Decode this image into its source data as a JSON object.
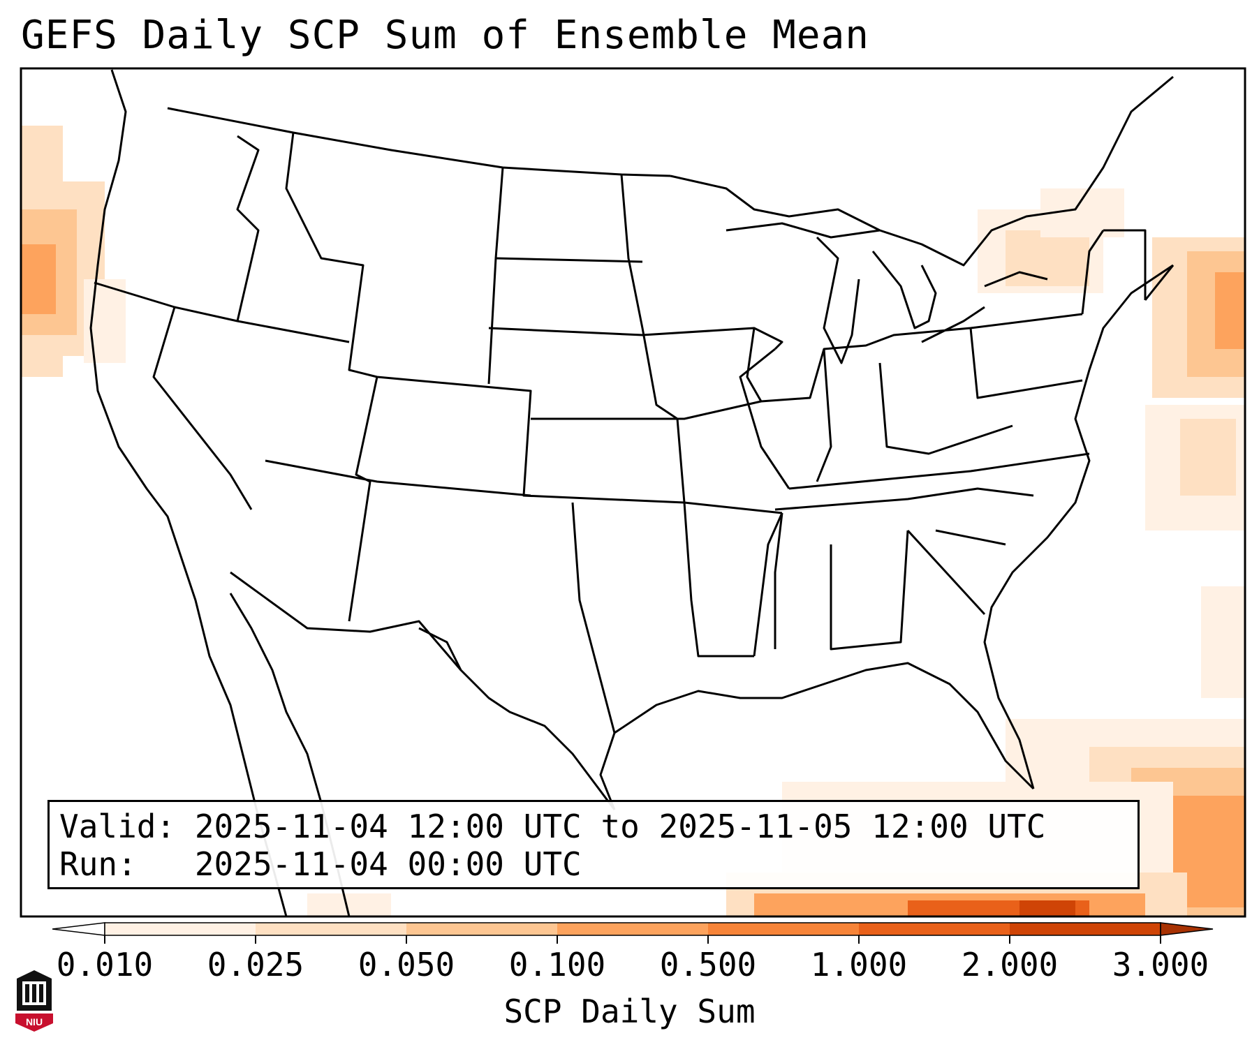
{
  "title": "GEFS Daily SCP Sum of Ensemble Mean",
  "valid_line": "Valid: 2025-11-04 12:00 UTC to 2025-11-05 12:00 UTC",
  "run_line": "Run:   2025-11-04 00:00 UTC",
  "colorbar": {
    "label": "SCP Daily Sum",
    "ticks": [
      "0.010",
      "0.025",
      "0.050",
      "0.100",
      "0.500",
      "1.000",
      "2.000",
      "3.000"
    ],
    "colors": [
      "#fff1e4",
      "#fee0c2",
      "#fdc692",
      "#fda35d",
      "#f78438",
      "#e9611a",
      "#cf4406"
    ],
    "under_color": "#ffffff",
    "over_color": "#a83203"
  },
  "logo": {
    "text": "NIU",
    "color": "#c8102e"
  },
  "map": {
    "projection": "Lambert Conformal",
    "region": "Continental United States",
    "field": "SCP Daily Sum (ensemble mean)"
  }
}
